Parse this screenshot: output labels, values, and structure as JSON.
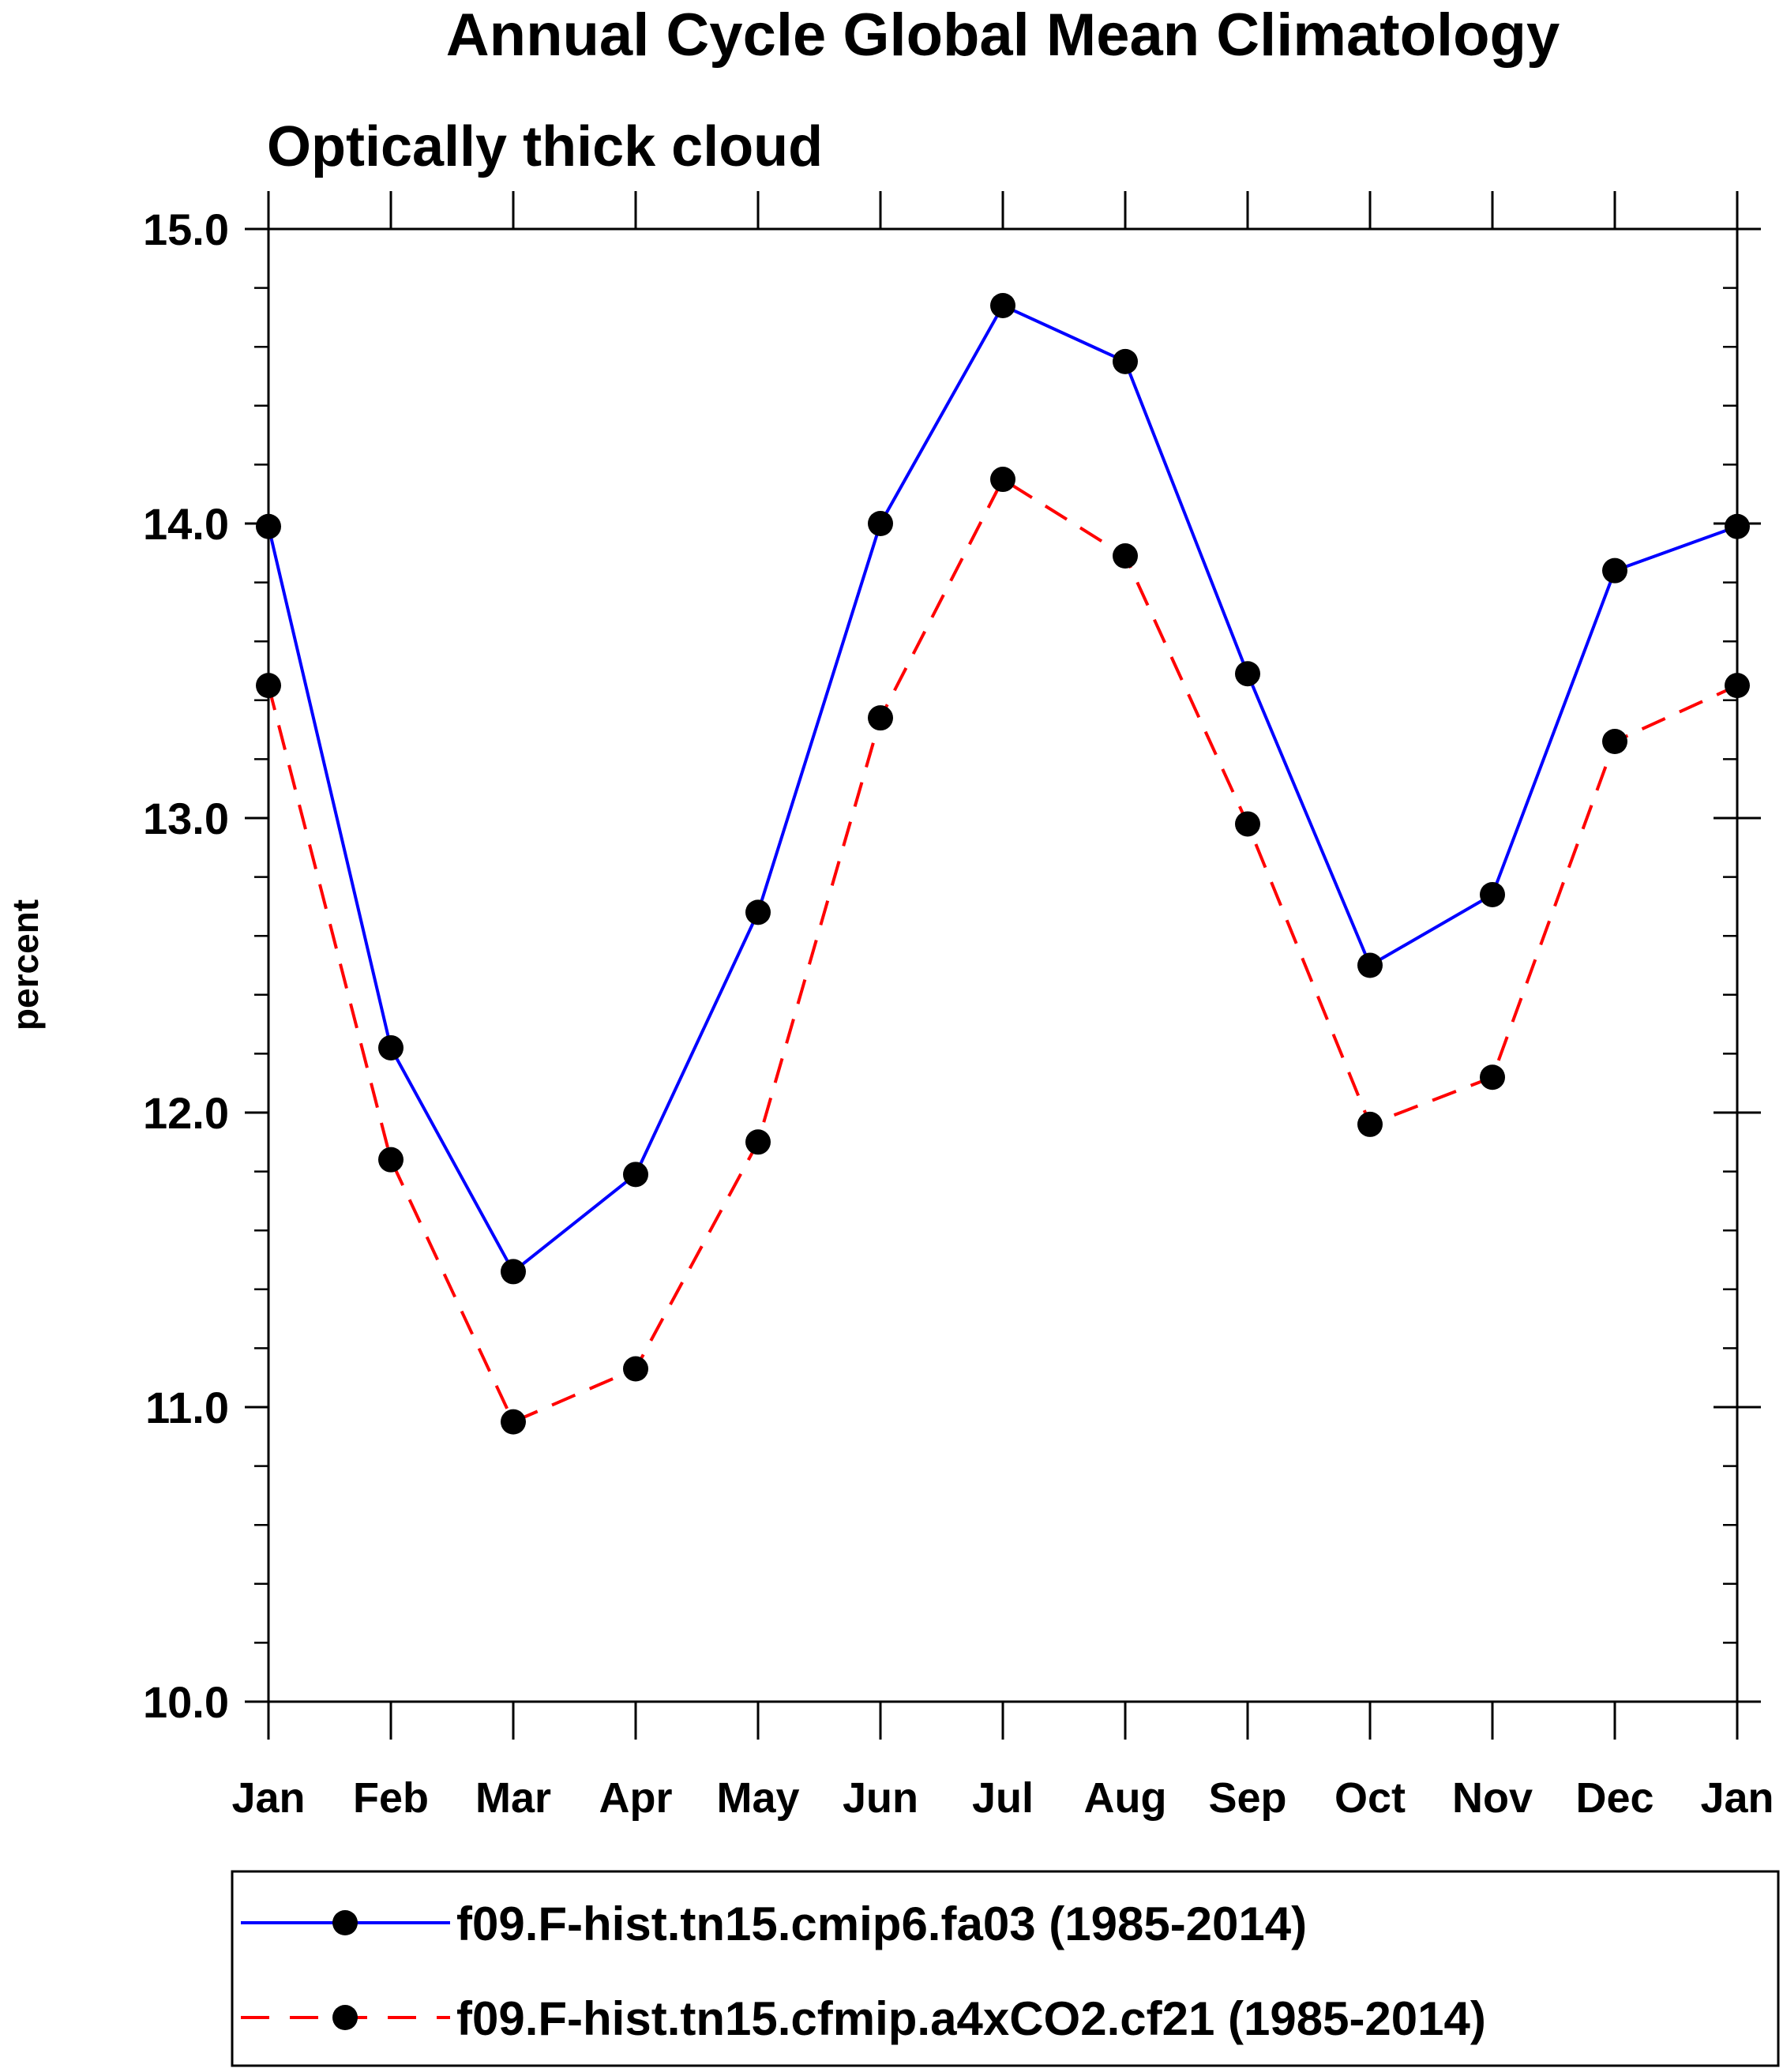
{
  "chart_data": {
    "type": "line",
    "title": "Annual Cycle Global Mean Climatology",
    "subtitle": "Optically thick cloud",
    "xlabel": "",
    "ylabel": "percent",
    "categories": [
      "Jan",
      "Feb",
      "Mar",
      "Apr",
      "May",
      "Jun",
      "Jul",
      "Aug",
      "Sep",
      "Oct",
      "Nov",
      "Dec",
      "Jan"
    ],
    "ylim": [
      10.0,
      15.0
    ],
    "yticks": [
      10.0,
      11.0,
      12.0,
      13.0,
      14.0,
      15.0
    ],
    "ytick_labels": [
      "10.0",
      "11.0",
      "12.0",
      "13.0",
      "14.0",
      "15.0"
    ],
    "minor_tick_step": 0.2,
    "grid": false,
    "legend_position": "bottom",
    "series": [
      {
        "name": "f09.F-hist.tn15.cmip6.fa03 (1985-2014)",
        "color": "#0000ff",
        "dash": "solid",
        "values": [
          13.99,
          12.22,
          11.46,
          11.79,
          12.68,
          14.0,
          14.74,
          14.55,
          13.49,
          12.5,
          12.74,
          13.84,
          13.99
        ]
      },
      {
        "name": "f09.F-hist.tn15.cfmip.a4xCO2.cf21 (1985-2014)",
        "color": "#ff0000",
        "dash": "dashed",
        "values": [
          13.45,
          11.84,
          10.95,
          11.13,
          11.9,
          13.34,
          14.15,
          13.89,
          12.98,
          11.96,
          12.12,
          13.26,
          13.45
        ]
      }
    ]
  }
}
